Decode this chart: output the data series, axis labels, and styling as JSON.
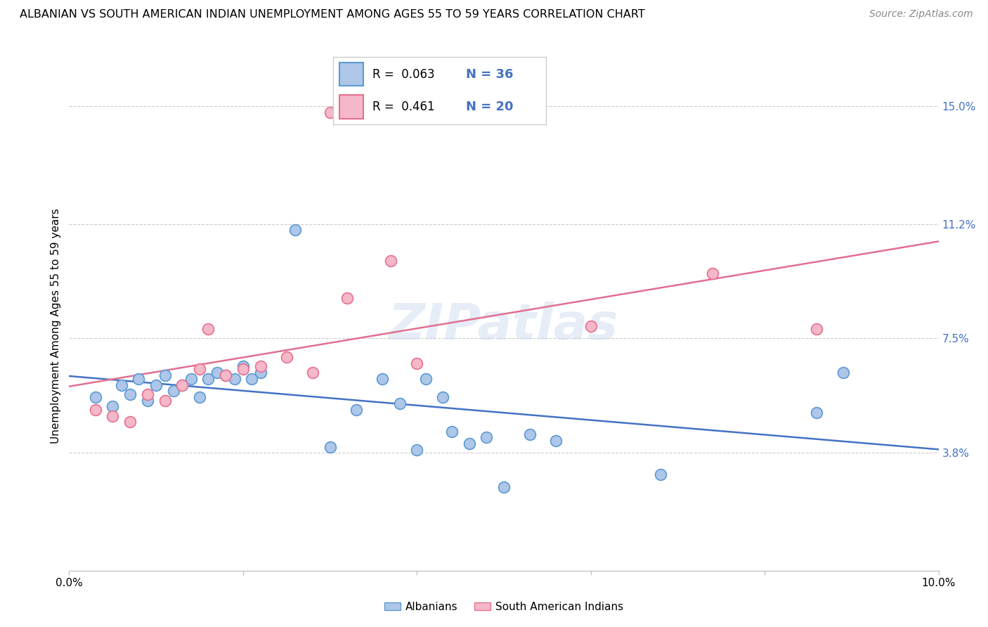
{
  "title": "ALBANIAN VS SOUTH AMERICAN INDIAN UNEMPLOYMENT AMONG AGES 55 TO 59 YEARS CORRELATION CHART",
  "source": "Source: ZipAtlas.com",
  "ylabel": "Unemployment Among Ages 55 to 59 years",
  "xlim": [
    0.0,
    0.1
  ],
  "ylim": [
    0.0,
    0.158
  ],
  "xticks": [
    0.0,
    0.02,
    0.04,
    0.06,
    0.08,
    0.1
  ],
  "xticklabels": [
    "0.0%",
    "",
    "",
    "",
    "",
    "10.0%"
  ],
  "ytick_positions": [
    0.038,
    0.075,
    0.112,
    0.15
  ],
  "ytick_labels": [
    "3.8%",
    "7.5%",
    "11.2%",
    "15.0%"
  ],
  "albanian_color": "#aec6e8",
  "albanian_edge": "#5b9bd5",
  "south_american_color": "#f4b8c8",
  "south_american_edge": "#e87090",
  "trend_albanian_color": "#4472c4",
  "trend_south_american_color": "#e07090",
  "albanian_R": 0.063,
  "albanian_N": 36,
  "south_american_R": 0.461,
  "south_american_N": 20,
  "watermark_text": "ZIPatlas",
  "albanian_x": [
    0.003,
    0.005,
    0.006,
    0.007,
    0.008,
    0.009,
    0.01,
    0.011,
    0.012,
    0.013,
    0.014,
    0.015,
    0.016,
    0.017,
    0.018,
    0.019,
    0.02,
    0.021,
    0.022,
    0.026,
    0.03,
    0.033,
    0.036,
    0.038,
    0.04,
    0.041,
    0.043,
    0.044,
    0.046,
    0.048,
    0.05,
    0.053,
    0.056,
    0.068,
    0.086,
    0.089
  ],
  "albanian_y": [
    0.056,
    0.053,
    0.06,
    0.057,
    0.062,
    0.055,
    0.06,
    0.063,
    0.058,
    0.06,
    0.062,
    0.056,
    0.062,
    0.064,
    0.063,
    0.062,
    0.066,
    0.062,
    0.064,
    0.11,
    0.04,
    0.052,
    0.062,
    0.054,
    0.039,
    0.062,
    0.056,
    0.045,
    0.041,
    0.043,
    0.027,
    0.044,
    0.042,
    0.031,
    0.051,
    0.064
  ],
  "south_american_x": [
    0.003,
    0.005,
    0.007,
    0.009,
    0.011,
    0.013,
    0.015,
    0.016,
    0.018,
    0.02,
    0.022,
    0.025,
    0.028,
    0.03,
    0.032,
    0.037,
    0.04,
    0.06,
    0.074,
    0.086
  ],
  "south_american_y": [
    0.052,
    0.05,
    0.048,
    0.057,
    0.055,
    0.06,
    0.065,
    0.078,
    0.063,
    0.065,
    0.066,
    0.069,
    0.064,
    0.148,
    0.088,
    0.1,
    0.067,
    0.079,
    0.096,
    0.078
  ]
}
